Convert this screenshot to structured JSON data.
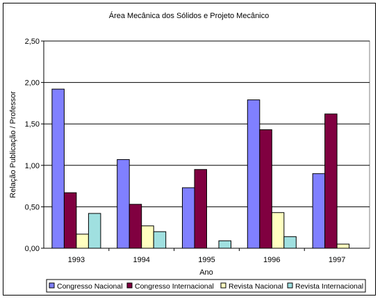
{
  "chart_data": {
    "type": "bar",
    "title": "Área Mecânica dos Sólidos e Projeto Mecânico",
    "xlabel": "Ano",
    "ylabel": "Relação Publicação / Professor",
    "categories": [
      "1993",
      "1994",
      "1995",
      "1996",
      "1997"
    ],
    "ylim": [
      0,
      2.5
    ],
    "yticks": [
      "0,00",
      "0,50",
      "1,00",
      "1,50",
      "2,00",
      "2,50"
    ],
    "grid": true,
    "legend_position": "bottom",
    "series": [
      {
        "name": "Congresso Nacional",
        "color": "#8080ff",
        "values": [
          1.92,
          1.07,
          0.73,
          1.79,
          0.9
        ]
      },
      {
        "name": "Congresso Internacional",
        "color": "#800040",
        "values": [
          0.67,
          0.53,
          0.95,
          1.43,
          1.62
        ]
      },
      {
        "name": "Revista Nacional",
        "color": "#ffffc0",
        "values": [
          0.17,
          0.27,
          0,
          0.43,
          0.05
        ]
      },
      {
        "name": "Revista Internacional",
        "color": "#a0e0e0",
        "values": [
          0.42,
          0.2,
          0.09,
          0.14,
          0
        ]
      }
    ]
  }
}
